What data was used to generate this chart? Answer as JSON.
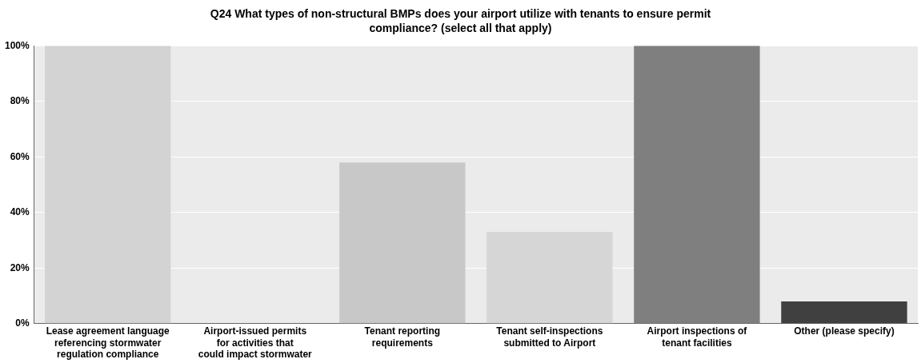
{
  "chart_data": {
    "type": "bar",
    "title": "Q24 What types of non-structural BMPs does your airport utilize with tenants to ensure permit compliance? (select all that apply)",
    "categories": [
      "Lease agreement language referencing stormwater regulation compliance",
      "Airport-issued permits for activities that could impact stormwater",
      "Tenant reporting requirements",
      "Tenant self-inspections submitted to Airport",
      "Airport inspections of tenant facilities",
      "Other (please specify)"
    ],
    "values": [
      100,
      0,
      58,
      33,
      100,
      8
    ],
    "colors": [
      "#d3d3d3",
      "#d3d3d3",
      "#c8c8c8",
      "#d6d6d6",
      "#7f7f7f",
      "#404040"
    ],
    "ylim": [
      0,
      100
    ],
    "yticks": [
      {
        "value": 0,
        "label": "0%"
      },
      {
        "value": 20,
        "label": "20%"
      },
      {
        "value": 40,
        "label": "40%"
      },
      {
        "value": 60,
        "label": "60%"
      },
      {
        "value": 80,
        "label": "80%"
      },
      {
        "value": 100,
        "label": "100%"
      }
    ],
    "grid": "y",
    "legend": false
  }
}
